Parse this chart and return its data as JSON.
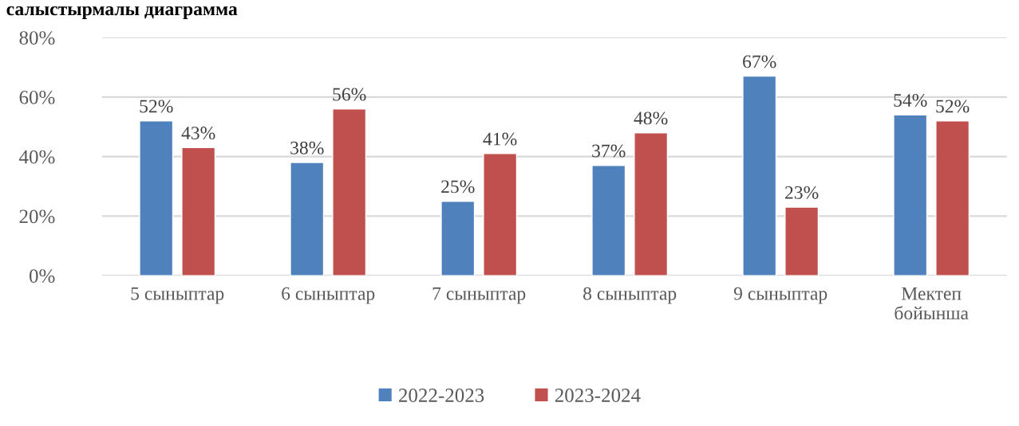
{
  "chart_data": {
    "type": "bar",
    "title": "салыстырмалы диаграмма",
    "categories": [
      "5 сыныптар",
      "6 сыныптар",
      "7 сыныптар",
      "8 сыныптар",
      "9 сыныптар",
      "Мектеп\nбойынша"
    ],
    "series": [
      {
        "name": "2022-2023",
        "color": "#4f81bd",
        "values": [
          52,
          38,
          25,
          37,
          67,
          54
        ],
        "value_labels": [
          "52%",
          "38%",
          "25%",
          "37%",
          "67%",
          "54%"
        ]
      },
      {
        "name": "2023-2024",
        "color": "#c0504d",
        "values": [
          43,
          56,
          41,
          48,
          23,
          52
        ],
        "value_labels": [
          "43%",
          "56%",
          "41%",
          "48%",
          "23%",
          "52%"
        ]
      }
    ],
    "ylim": [
      0,
      80
    ],
    "yticks": [
      {
        "value": 0,
        "label": "0%"
      },
      {
        "value": 20,
        "label": "20%"
      },
      {
        "value": 40,
        "label": "40%"
      },
      {
        "value": 60,
        "label": "60%"
      },
      {
        "value": 80,
        "label": "80%"
      }
    ],
    "grid": "y",
    "legend": "bottom"
  }
}
